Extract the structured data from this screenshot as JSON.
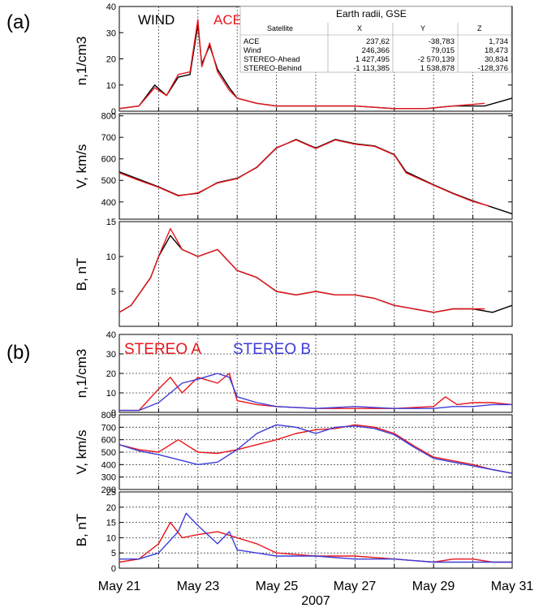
{
  "panel_a": {
    "label": "(a)",
    "legend": [
      {
        "name": "WIND",
        "color": "#000000"
      },
      {
        "name": "ACE",
        "color": "#e8161c"
      }
    ],
    "table": {
      "title": "Earth radii, GSE",
      "headers": [
        "Satellite",
        "X",
        "Y",
        "Z"
      ],
      "rows": [
        [
          "ACE",
          "237,62",
          "-38,783",
          "1,734"
        ],
        [
          "Wind",
          "246,366",
          "79,015",
          "18,473"
        ],
        [
          "STEREO-Ahead",
          "1 427,495",
          "-2 570,139",
          "30,834"
        ],
        [
          "STEREO-Behind",
          "-1 113,385",
          "1 538,878",
          "-128,376"
        ]
      ]
    }
  },
  "panel_b": {
    "label": "(b)",
    "legend": [
      {
        "name": "STEREO A",
        "color": "#e8161c"
      },
      {
        "name": "STEREO B",
        "color": "#3c3cd8"
      }
    ]
  },
  "x_axis": {
    "tick_labels": [
      "May 21",
      "May 23",
      "May 25",
      "May 27",
      "May 29",
      "May 31"
    ],
    "year_label": "2007"
  },
  "chart_data": [
    {
      "type": "line",
      "panel": "a",
      "ylabel": "n,1/cm3",
      "ylim": [
        0,
        40
      ],
      "yticks": [
        0,
        10,
        20,
        30,
        40
      ],
      "xlim": [
        21,
        31
      ],
      "grid": "vertical dotted, daily",
      "series": [
        {
          "name": "WIND",
          "color": "#000000",
          "x": [
            21.0,
            21.5,
            21.9,
            22.2,
            22.5,
            22.8,
            23.0,
            23.1,
            23.3,
            23.5,
            23.8,
            24.0,
            24.5,
            25.0,
            26.0,
            27.0,
            28.0,
            28.8,
            29.5,
            30.3,
            31.0
          ],
          "y": [
            1,
            2,
            10,
            6,
            13,
            14,
            33,
            18,
            25,
            16,
            9,
            5,
            3,
            2,
            2,
            2,
            1,
            1,
            2,
            2,
            5
          ]
        },
        {
          "name": "ACE",
          "color": "#e8161c",
          "x": [
            21.0,
            21.5,
            21.9,
            22.2,
            22.5,
            22.8,
            23.0,
            23.1,
            23.3,
            23.5,
            23.8,
            24.0,
            24.5,
            25.0,
            26.0,
            27.0,
            28.0,
            28.8,
            29.5,
            30.3
          ],
          "y": [
            1,
            2,
            9,
            6,
            14,
            15,
            35,
            17,
            26,
            15,
            8,
            5,
            3,
            2,
            2,
            2,
            1,
            1,
            2,
            3
          ]
        }
      ]
    },
    {
      "type": "line",
      "panel": "a",
      "ylabel": "V, km/s",
      "ylim": [
        320,
        810
      ],
      "yticks": [
        400,
        500,
        600,
        700,
        800
      ],
      "xlim": [
        21,
        31
      ],
      "grid": "vertical dotted, daily",
      "series": [
        {
          "name": "WIND",
          "color": "#000000",
          "x": [
            21.0,
            21.5,
            22.0,
            22.5,
            23.0,
            23.5,
            24.0,
            24.5,
            25.0,
            25.5,
            26.0,
            26.5,
            27.0,
            27.5,
            28.0,
            28.3,
            29.0,
            29.5,
            30.0,
            30.5,
            31.0
          ],
          "y": [
            540,
            505,
            470,
            430,
            440,
            490,
            510,
            560,
            650,
            690,
            650,
            690,
            670,
            660,
            620,
            540,
            480,
            440,
            405,
            375,
            345
          ]
        },
        {
          "name": "ACE",
          "color": "#e8161c",
          "x": [
            21.0,
            21.5,
            22.0,
            22.5,
            23.0,
            23.5,
            24.0,
            24.5,
            25.0,
            25.5,
            26.0,
            26.5,
            27.0,
            27.5,
            28.0,
            28.3,
            29.0,
            29.5,
            30.0,
            30.4
          ],
          "y": [
            535,
            500,
            468,
            428,
            442,
            488,
            508,
            562,
            652,
            688,
            648,
            688,
            668,
            658,
            618,
            535,
            478,
            438,
            402,
            382
          ]
        }
      ]
    },
    {
      "type": "line",
      "panel": "a",
      "ylabel": "B, nT",
      "ylim": [
        0,
        15
      ],
      "yticks": [
        5,
        10,
        15
      ],
      "xlim": [
        21,
        31
      ],
      "grid": "vertical dotted, daily",
      "series": [
        {
          "name": "WIND",
          "color": "#000000",
          "x": [
            21.0,
            21.3,
            21.8,
            22.0,
            22.3,
            22.6,
            23.0,
            23.5,
            24.0,
            24.5,
            25.0,
            25.5,
            26.0,
            26.5,
            27.0,
            27.5,
            28.0,
            28.5,
            29.0,
            29.5,
            30.0,
            30.5,
            31.0
          ],
          "y": [
            2,
            3,
            7,
            10,
            13,
            11,
            10,
            11,
            8,
            7,
            5,
            4.5,
            5,
            4.5,
            4.5,
            4,
            3,
            2.5,
            2,
            2.5,
            2.5,
            2,
            3
          ]
        },
        {
          "name": "ACE",
          "color": "#e8161c",
          "x": [
            21.0,
            21.3,
            21.8,
            22.0,
            22.3,
            22.6,
            23.0,
            23.5,
            24.0,
            24.5,
            25.0,
            25.5,
            26.0,
            26.5,
            27.0,
            27.5,
            28.0,
            28.5,
            29.0,
            29.5,
            30.0,
            30.3
          ],
          "y": [
            2,
            3,
            7,
            10,
            14,
            11,
            10,
            11,
            8,
            7,
            5,
            4.5,
            5,
            4.5,
            4.5,
            4,
            3,
            2.5,
            2,
            2.5,
            2.5,
            2.5
          ]
        }
      ]
    },
    {
      "type": "line",
      "panel": "b",
      "ylabel": "n,1/cm3",
      "ylim": [
        0,
        40
      ],
      "yticks": [
        0,
        10,
        20,
        30,
        40
      ],
      "xlim": [
        21,
        31
      ],
      "grid": "horizontal and vertical dotted",
      "series": [
        {
          "name": "STEREO A",
          "color": "#e8161c",
          "x": [
            21.0,
            21.5,
            22.0,
            22.3,
            22.6,
            23.0,
            23.5,
            23.8,
            24.0,
            24.5,
            25.0,
            26.0,
            27.0,
            28.0,
            29.0,
            29.3,
            29.6,
            30.0,
            30.5,
            31.0
          ],
          "y": [
            1,
            1,
            12,
            18,
            10,
            18,
            15,
            20,
            6,
            4,
            3,
            2,
            2,
            2,
            3,
            8,
            4,
            5,
            5,
            4
          ]
        },
        {
          "name": "STEREO B",
          "color": "#3c3cd8",
          "x": [
            21.0,
            21.5,
            22.0,
            22.3,
            22.6,
            23.0,
            23.5,
            23.8,
            24.0,
            24.5,
            25.0,
            26.0,
            27.0,
            28.0,
            29.0,
            29.5,
            30.0,
            30.5,
            31.0
          ],
          "y": [
            1,
            1,
            5,
            10,
            15,
            17,
            20,
            18,
            8,
            5,
            3,
            2,
            3,
            2,
            2,
            3,
            3,
            4,
            4
          ]
        }
      ]
    },
    {
      "type": "line",
      "panel": "b",
      "ylabel": "V, km/s",
      "ylim": [
        200,
        800
      ],
      "yticks": [
        200,
        300,
        400,
        500,
        600,
        700,
        800
      ],
      "xlim": [
        21,
        31
      ],
      "grid": "horizontal and vertical dotted",
      "series": [
        {
          "name": "STEREO A",
          "color": "#e8161c",
          "x": [
            21.0,
            21.5,
            22.0,
            22.5,
            23.0,
            23.5,
            24.0,
            24.5,
            25.0,
            25.5,
            26.0,
            26.5,
            27.0,
            27.5,
            28.0,
            28.5,
            29.0,
            29.5,
            30.0,
            30.5,
            31.0
          ],
          "y": [
            560,
            520,
            500,
            600,
            500,
            490,
            520,
            560,
            600,
            650,
            680,
            690,
            720,
            700,
            650,
            550,
            460,
            430,
            400,
            360,
            330
          ]
        },
        {
          "name": "STEREO B",
          "color": "#3c3cd8",
          "x": [
            21.0,
            21.5,
            22.0,
            22.5,
            23.0,
            23.5,
            24.0,
            24.5,
            25.0,
            25.5,
            26.0,
            26.5,
            27.0,
            27.5,
            28.0,
            28.5,
            29.0,
            29.5,
            30.0,
            30.5,
            31.0
          ],
          "y": [
            560,
            510,
            480,
            440,
            400,
            420,
            520,
            650,
            720,
            700,
            650,
            700,
            710,
            690,
            640,
            540,
            450,
            420,
            390,
            360,
            330
          ]
        }
      ]
    },
    {
      "type": "line",
      "panel": "b",
      "ylabel": "B, nT",
      "ylim": [
        0,
        25
      ],
      "yticks": [
        0,
        5,
        10,
        15,
        20,
        25
      ],
      "xlim": [
        21,
        31
      ],
      "grid": "horizontal and vertical dotted",
      "series": [
        {
          "name": "STEREO A",
          "color": "#e8161c",
          "x": [
            21.0,
            21.5,
            22.0,
            22.3,
            22.6,
            23.0,
            23.5,
            24.0,
            24.5,
            25.0,
            26.0,
            27.0,
            28.0,
            29.0,
            29.5,
            30.0,
            30.5,
            31.0
          ],
          "y": [
            2,
            3,
            8,
            15,
            10,
            11,
            12,
            10,
            8,
            5,
            4,
            4,
            3,
            2,
            3,
            3,
            2,
            2
          ]
        },
        {
          "name": "STEREO B",
          "color": "#3c3cd8",
          "x": [
            21.0,
            21.5,
            22.0,
            22.5,
            22.7,
            23.0,
            23.5,
            23.8,
            24.0,
            24.5,
            25.0,
            26.0,
            27.0,
            28.0,
            29.0,
            30.0,
            31.0
          ],
          "y": [
            3,
            3,
            5,
            12,
            18,
            14,
            8,
            12,
            6,
            5,
            4,
            4,
            3,
            3,
            2,
            2,
            2
          ]
        }
      ]
    }
  ]
}
